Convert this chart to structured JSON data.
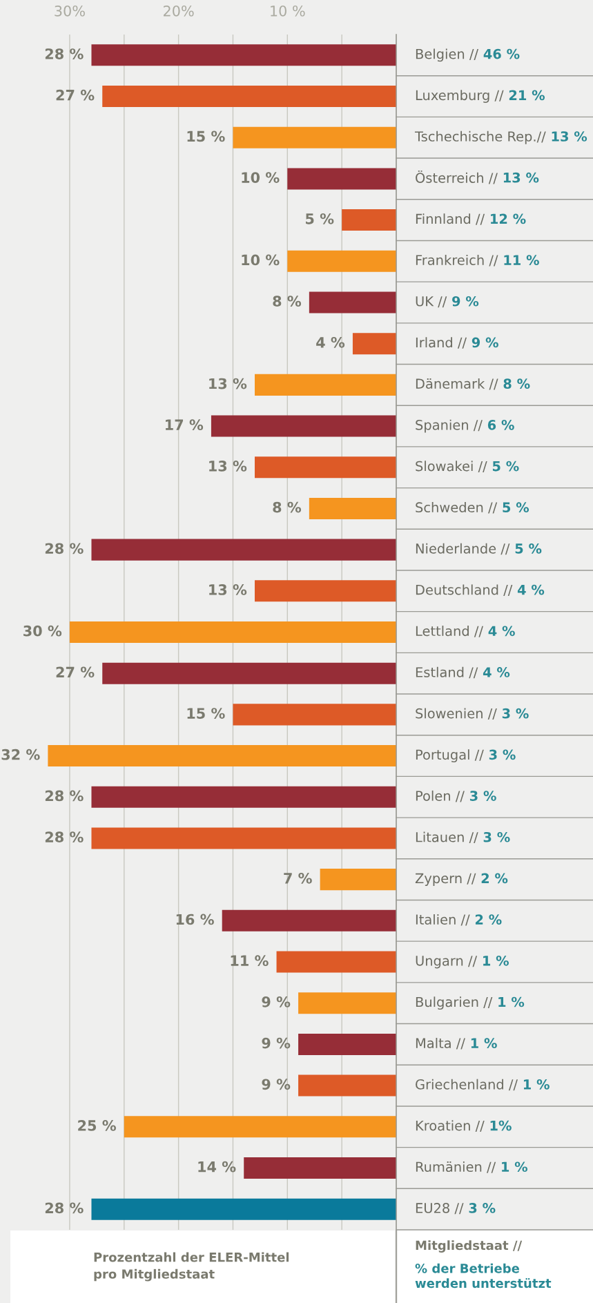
{
  "chart_data": {
    "type": "bar",
    "orientation": "horizontal",
    "categories": [
      "Belgien // 46 %",
      "Luxemburg // 21 %",
      "Tschechische Rep.// 13 %",
      "Österreich // 13 %",
      "Finnland // 12 %",
      "Frankreich // 11 %",
      "UK // 9 %",
      "Irland // 9 %",
      "Dänemark // 8 %",
      "Spanien // 6 %",
      "Slowakei // 5 %",
      "Schweden // 5 %",
      "Niederlande // 5 %",
      "Deutschland // 4 %",
      "Lettland // 4 %",
      "Estland // 4 %",
      "Slowenien // 3 %",
      "Portugal // 3 %",
      "Polen // 3 %",
      "Litauen // 3 %",
      "Zypern // 2 %",
      "Italien // 2 %",
      "Ungarn // 1 %",
      "Bulgarien // 1 %",
      "Malta // 1 %",
      "Griechenland // 1 %",
      "Kroatien // 1%",
      "Rumänien // 1 %",
      "EU28 // 3 %"
    ],
    "values": [
      28,
      27,
      15,
      10,
      5,
      10,
      8,
      4,
      13,
      17,
      13,
      8,
      28,
      13,
      30,
      27,
      15,
      32,
      28,
      28,
      7,
      16,
      11,
      9,
      9,
      9,
      25,
      14,
      28
    ],
    "value_labels": [
      "28 %",
      "27 %",
      "15 %",
      "10 %",
      "5 %",
      "10 %",
      "8 %",
      "4 %",
      "13 %",
      "17 %",
      "13 %",
      "8 %",
      "28 %",
      "13 %",
      "30 %",
      "27 %",
      "15 %",
      "32 %",
      "28 %",
      "28 %",
      "7 %",
      "16 %",
      "11 %",
      "9 %",
      "9 %",
      "9 %",
      "25 %",
      "14 %",
      "28 %"
    ],
    "colors": [
      "#962d37",
      "#dd5a27",
      "#f5951f",
      "#962d37",
      "#dd5a27",
      "#f5951f",
      "#962d37",
      "#dd5a27",
      "#f5951f",
      "#962d37",
      "#dd5a27",
      "#f5951f",
      "#962d37",
      "#dd5a27",
      "#f5951f",
      "#962d37",
      "#dd5a27",
      "#f5951f",
      "#962d37",
      "#dd5a27",
      "#f5951f",
      "#962d37",
      "#dd5a27",
      "#f5951f",
      "#962d37",
      "#dd5a27",
      "#f5951f",
      "#962d37",
      "#0a7a9b"
    ],
    "xlim": [
      36.4,
      0
    ],
    "xticks": [
      {
        "value": 30,
        "label": "30%"
      },
      {
        "value": 25,
        "label": null
      },
      {
        "value": 20,
        "label": "20%"
      },
      {
        "value": 15,
        "label": null
      },
      {
        "value": 10,
        "label": "10 %"
      },
      {
        "value": 5,
        "label": null
      }
    ],
    "grid": "x",
    "xlabel": "Prozentzahl der ELER-Mittel pro Mitgliedstaat",
    "annotations": [
      "Mitgliedstaat // % der Betriebe werden unterstützt"
    ]
  }
}
